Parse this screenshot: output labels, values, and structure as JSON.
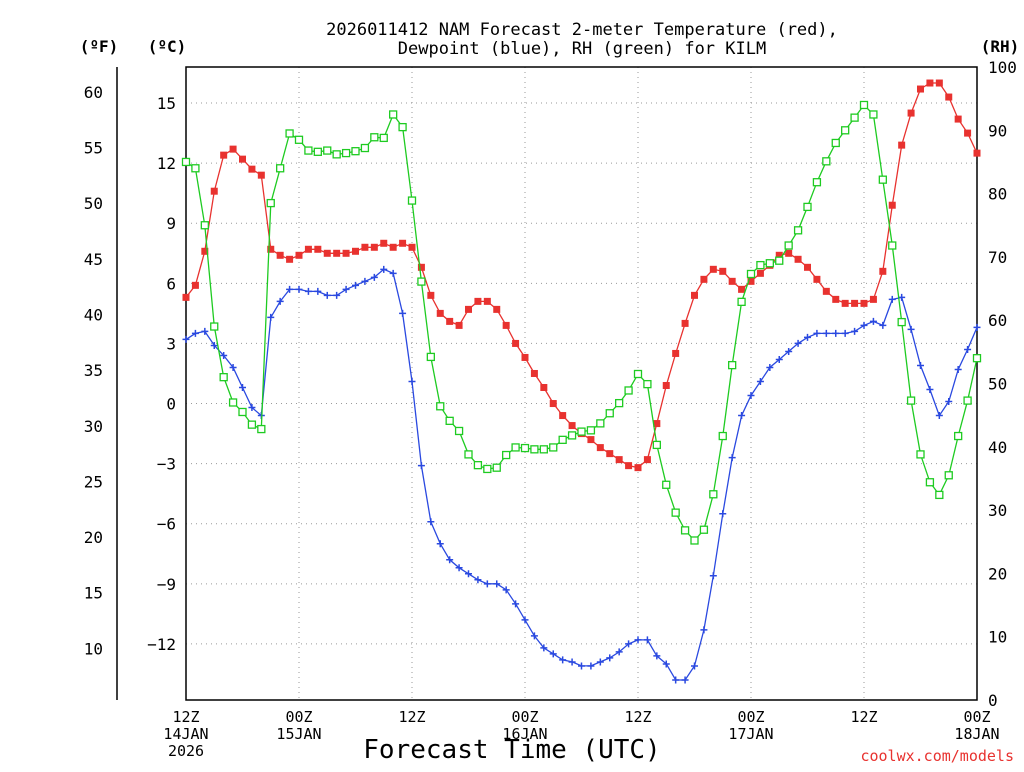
{
  "chart_data": {
    "type": "line",
    "title_lines": [
      "2026011412 NAM Forecast 2-meter Temperature (red),",
      "Dewpoint (blue), RH (green) for KILM"
    ],
    "xlabel": "Forecast Time (UTC)",
    "credit": "coolwx.com/models",
    "units": {
      "fahrenheit": "(ºF)",
      "celsius": "(ºC)",
      "rh": "(RH)"
    },
    "x_hours": {
      "start": 0,
      "end": 84,
      "step": 1
    },
    "xlim": [
      0,
      84
    ],
    "x_ticks": [
      {
        "hour": 0,
        "lines": [
          "12Z",
          "14JAN",
          "2026"
        ]
      },
      {
        "hour": 12,
        "lines": [
          "00Z",
          "15JAN"
        ]
      },
      {
        "hour": 24,
        "lines": [
          "12Z"
        ]
      },
      {
        "hour": 36,
        "lines": [
          "00Z",
          "16JAN"
        ]
      },
      {
        "hour": 48,
        "lines": [
          "12Z"
        ]
      },
      {
        "hour": 60,
        "lines": [
          "00Z",
          "17JAN"
        ]
      },
      {
        "hour": 72,
        "lines": [
          "12Z"
        ]
      },
      {
        "hour": 84,
        "lines": [
          "00Z",
          "18JAN"
        ]
      }
    ],
    "y_celsius": {
      "lim": [
        -14.8,
        16.8
      ],
      "ticks": [
        "15",
        "12",
        "9",
        "6",
        "3",
        "0",
        "−3",
        "−6",
        "−9",
        "−12"
      ],
      "tick_values": [
        15,
        12,
        9,
        6,
        3,
        0,
        -3,
        -6,
        -9,
        -12
      ]
    },
    "y_fahrenheit": {
      "lim": [
        5.36,
        62.24
      ],
      "ticks": [
        "60",
        "55",
        "50",
        "45",
        "40",
        "35",
        "30",
        "25",
        "20",
        "15",
        "10"
      ],
      "tick_values": [
        60,
        55,
        50,
        45,
        40,
        35,
        30,
        25,
        20,
        15,
        10
      ]
    },
    "y_rh": {
      "lim": [
        0,
        100
      ],
      "ticks": [
        "100",
        "90",
        "80",
        "70",
        "60",
        "50",
        "40",
        "30",
        "20",
        "10",
        "0"
      ],
      "tick_values": [
        100,
        90,
        80,
        70,
        60,
        50,
        40,
        30,
        20,
        10,
        0
      ]
    },
    "grid": "dotted",
    "series": [
      {
        "color": "#e8322f",
        "marker": "filled-square",
        "axis": "celsius",
        "values": [
          5.3,
          5.9,
          7.6,
          10.6,
          12.4,
          12.7,
          12.2,
          11.7,
          11.4,
          7.7,
          7.4,
          7.2,
          7.4,
          7.7,
          7.7,
          7.5,
          7.5,
          7.5,
          7.6,
          7.8,
          7.8,
          8,
          7.8,
          8,
          7.8,
          6.8,
          5.4,
          4.5,
          4.1,
          3.9,
          4.7,
          5.1,
          5.1,
          4.7,
          3.9,
          3,
          2.3,
          1.5,
          0.8,
          0,
          -0.6,
          -1.1,
          -1.5,
          -1.8,
          -2.2,
          -2.5,
          -2.8,
          -3.1,
          -3.2,
          -2.8,
          -1,
          0.9,
          2.5,
          4,
          5.4,
          6.2,
          6.7,
          6.6,
          6.1,
          5.7,
          6.1,
          6.5,
          6.9,
          7.4,
          7.5,
          7.2,
          6.8,
          6.2,
          5.6,
          5.2,
          5,
          5,
          5,
          5.2,
          6.6,
          9.9,
          12.9,
          14.5,
          15.7,
          16,
          16,
          15.3,
          14.2,
          13.5,
          12.5
        ]
      },
      {
        "color": "#2a49e0",
        "marker": "plus",
        "axis": "celsius",
        "values": [
          3.2,
          3.5,
          3.6,
          2.9,
          2.4,
          1.8,
          0.8,
          -0.2,
          -0.6,
          4.3,
          5.1,
          5.7,
          5.7,
          5.6,
          5.6,
          5.4,
          5.4,
          5.7,
          5.9,
          6.1,
          6.3,
          6.7,
          6.5,
          4.5,
          1.1,
          -3.1,
          -5.9,
          -7,
          -7.8,
          -8.2,
          -8.5,
          -8.8,
          -9,
          -9,
          -9.3,
          -10,
          -10.8,
          -11.6,
          -12.2,
          -12.5,
          -12.8,
          -12.9,
          -13.1,
          -13.1,
          -12.9,
          -12.7,
          -12.4,
          -12,
          -11.8,
          -11.8,
          -12.6,
          -13,
          -13.8,
          -13.8,
          -13.1,
          -11.3,
          -8.6,
          -5.5,
          -2.7,
          -0.6,
          0.4,
          1.1,
          1.8,
          2.2,
          2.6,
          3,
          3.3,
          3.5,
          3.5,
          3.5,
          3.5,
          3.6,
          3.9,
          4.1,
          3.9,
          5.2,
          5.3,
          3.7,
          1.9,
          0.7,
          -0.6,
          0.1,
          1.7,
          2.7,
          3.8
        ]
      },
      {
        "color": "#1ecb21",
        "marker": "open-square",
        "axis": "rh",
        "values": [
          85,
          84,
          75,
          59,
          51,
          47,
          45.5,
          43.5,
          42.8,
          78.5,
          84,
          89.5,
          88.5,
          86.8,
          86.6,
          86.8,
          86.2,
          86.4,
          86.7,
          87.2,
          88.9,
          88.8,
          92.5,
          90.5,
          78.9,
          66.1,
          54.2,
          46.4,
          44.1,
          42.5,
          38.8,
          37.1,
          36.5,
          36.7,
          38.7,
          39.9,
          39.8,
          39.6,
          39.6,
          39.9,
          41.1,
          41.8,
          42.4,
          42.6,
          43.7,
          45.3,
          46.9,
          48.9,
          51.5,
          49.9,
          40.3,
          34,
          29.6,
          26.8,
          25.2,
          26.9,
          32.5,
          41.7,
          52.9,
          62.9,
          67.3,
          68.7,
          69,
          69.4,
          71.8,
          74.2,
          77.9,
          81.8,
          85.1,
          88,
          90,
          92,
          94,
          92.5,
          82.2,
          71.8,
          59.7,
          47.3,
          38.8,
          34.4,
          32.4,
          35.5,
          41.7,
          47.3,
          54
        ]
      }
    ]
  }
}
